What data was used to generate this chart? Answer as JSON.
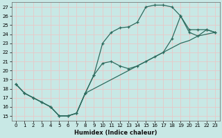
{
  "xlabel": "Humidex (Indice chaleur)",
  "xlim": [
    -0.5,
    23.5
  ],
  "ylim": [
    14.5,
    27.5
  ],
  "xticks": [
    0,
    1,
    2,
    3,
    4,
    5,
    6,
    7,
    8,
    9,
    10,
    11,
    12,
    13,
    14,
    15,
    16,
    17,
    18,
    19,
    20,
    21,
    22,
    23
  ],
  "yticks": [
    15,
    16,
    17,
    18,
    19,
    20,
    21,
    22,
    23,
    24,
    25,
    26,
    27
  ],
  "bg_color": "#c8e8e5",
  "grid_color": "#e8c8c8",
  "line_color": "#2d6b5e",
  "line1_x": [
    0,
    1,
    2,
    3,
    4,
    5,
    6,
    7,
    8,
    9,
    10,
    11,
    12,
    13,
    14,
    15,
    16,
    17,
    18,
    19,
    20,
    21,
    22,
    23
  ],
  "line1_y": [
    18.5,
    17.5,
    17.0,
    16.5,
    16.0,
    15.0,
    15.0,
    15.3,
    17.5,
    19.5,
    23.0,
    24.2,
    24.7,
    24.8,
    25.3,
    27.0,
    27.2,
    27.2,
    27.0,
    26.0,
    24.5,
    24.5,
    24.5,
    24.2
  ],
  "line2_x": [
    0,
    1,
    2,
    3,
    4,
    5,
    6,
    7,
    8,
    9,
    10,
    11,
    12,
    13,
    14,
    15,
    16,
    17,
    18,
    19,
    20,
    21,
    22,
    23
  ],
  "line2_y": [
    18.5,
    17.5,
    17.0,
    16.5,
    16.0,
    15.0,
    15.0,
    15.3,
    17.5,
    19.5,
    20.8,
    21.0,
    20.5,
    20.2,
    20.5,
    21.0,
    21.5,
    22.0,
    23.5,
    26.0,
    24.2,
    23.8,
    24.5,
    24.2
  ],
  "line3_x": [
    0,
    1,
    2,
    3,
    4,
    5,
    6,
    7,
    8,
    9,
    10,
    11,
    12,
    13,
    14,
    15,
    16,
    17,
    18,
    19,
    20,
    21,
    22,
    23
  ],
  "line3_y": [
    18.5,
    17.5,
    17.0,
    16.5,
    16.0,
    15.0,
    15.0,
    15.3,
    17.5,
    18.0,
    18.5,
    19.0,
    19.5,
    20.0,
    20.5,
    21.0,
    21.5,
    22.0,
    22.5,
    23.0,
    23.3,
    23.8,
    24.0,
    24.2
  ]
}
